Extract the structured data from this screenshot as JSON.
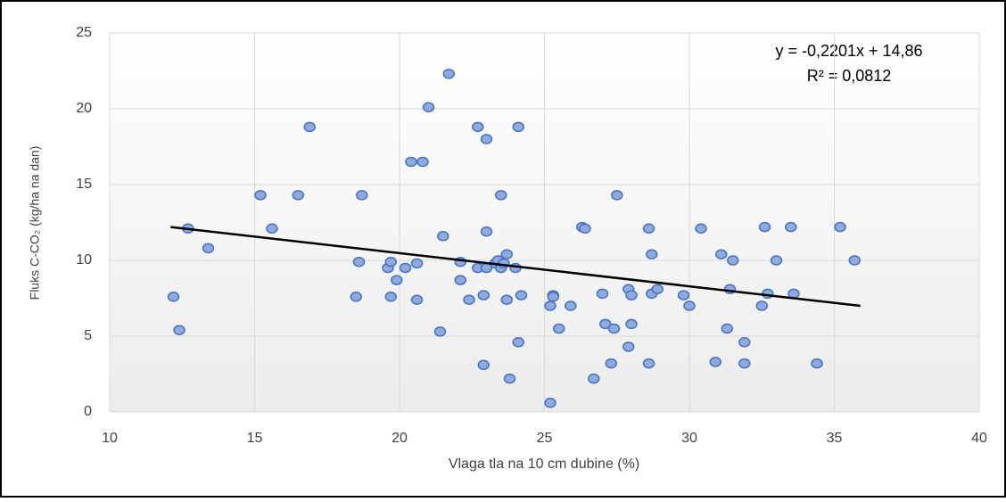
{
  "chart_data": {
    "type": "scatter",
    "x_label": "Vlaga tla na 10 cm dubine (%)",
    "y_label": "Fluks C-CO₂ (kg/ha na dan)",
    "equation": "y = -0,2201x + 14,86",
    "r_squared": "R² = 0,0812",
    "xlim": [
      10,
      40
    ],
    "xticks": [
      10,
      15,
      20,
      25,
      30,
      35,
      40
    ],
    "ylim": [
      0,
      25
    ],
    "yticks": [
      0,
      5,
      10,
      15,
      20,
      25
    ],
    "grid": true,
    "marker_color": "#8faadc",
    "marker_edge": "#4472c4",
    "x": [
      12.2,
      12.4,
      12.7,
      13.4,
      15.2,
      15.6,
      16.5,
      16.9,
      18.5,
      18.6,
      18.7,
      19.6,
      19.7,
      19.7,
      19.9,
      20.2,
      20.4,
      20.6,
      20.6,
      20.8,
      21.0,
      21.4,
      21.5,
      21.7,
      22.1,
      22.1,
      22.4,
      22.7,
      22.7,
      22.9,
      22.9,
      23.0,
      23.0,
      23.0,
      23.3,
      23.4,
      23.5,
      23.5,
      23.6,
      23.7,
      23.7,
      23.8,
      24.0,
      24.1,
      24.1,
      24.2,
      25.2,
      25.2,
      25.3,
      25.3,
      25.5,
      25.9,
      26.3,
      26.4,
      26.7,
      27.0,
      27.1,
      27.3,
      27.4,
      27.5,
      27.9,
      27.9,
      28.0,
      28.0,
      28.6,
      28.6,
      28.7,
      28.7,
      28.9,
      29.8,
      30.0,
      30.4,
      30.9,
      31.1,
      31.3,
      31.4,
      31.5,
      31.9,
      31.9,
      32.5,
      32.6,
      32.7,
      33.0,
      33.5,
      33.6,
      34.4,
      35.2,
      35.7
    ],
    "values": [
      7.6,
      5.4,
      12.1,
      10.8,
      14.3,
      12.1,
      14.3,
      18.8,
      7.6,
      9.9,
      14.3,
      9.5,
      7.6,
      9.9,
      8.7,
      9.5,
      16.5,
      9.8,
      7.4,
      16.5,
      20.1,
      5.3,
      11.6,
      22.3,
      9.9,
      8.7,
      7.4,
      18.8,
      9.5,
      3.1,
      7.7,
      11.9,
      18.0,
      9.5,
      9.8,
      10.0,
      14.3,
      9.5,
      9.8,
      10.4,
      7.4,
      2.2,
      9.5,
      18.8,
      4.6,
      7.7,
      7.0,
      0.6,
      7.7,
      7.6,
      5.5,
      7.0,
      12.2,
      12.1,
      2.2,
      7.8,
      5.8,
      3.2,
      5.5,
      14.3,
      8.1,
      4.3,
      7.7,
      5.8,
      12.1,
      3.2,
      10.4,
      7.8,
      8.1,
      7.7,
      7.0,
      12.1,
      3.3,
      10.4,
      5.5,
      8.1,
      10.0,
      4.6,
      3.2,
      7.0,
      12.2,
      7.8,
      10.0,
      12.2,
      7.8,
      3.2,
      12.2,
      10.0
    ],
    "trendline": {
      "x": [
        12.1,
        35.9
      ],
      "values": [
        12.2,
        7.0
      ],
      "color": "#000000"
    }
  }
}
